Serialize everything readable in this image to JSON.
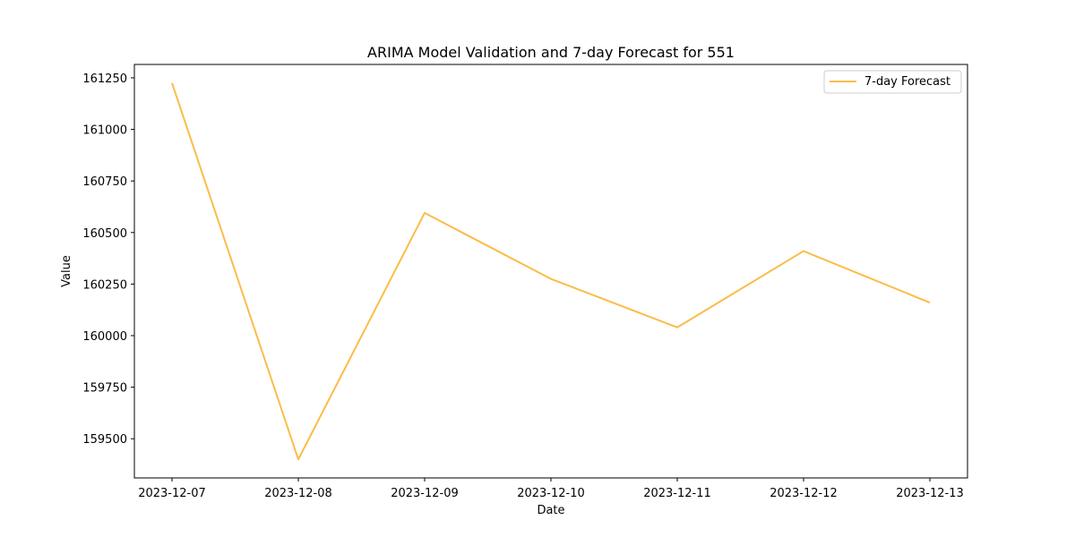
{
  "chart_data": {
    "type": "line",
    "title": "ARIMA Model Validation and 7-day Forecast for 551",
    "xlabel": "Date",
    "ylabel": "Value",
    "x": [
      "2023-12-07",
      "2023-12-08",
      "2023-12-09",
      "2023-12-10",
      "2023-12-11",
      "2023-12-12",
      "2023-12-13"
    ],
    "series": [
      {
        "name": "7-day Forecast",
        "color": "#FBBC48",
        "values": [
          161225,
          159400,
          160595,
          160275,
          160040,
          160410,
          160160
        ]
      }
    ],
    "ylim": [
      159310,
      161315
    ],
    "yticks": [
      159500,
      159750,
      160000,
      160250,
      160500,
      160750,
      161000,
      161250
    ],
    "grid": false,
    "legend": "top-right"
  }
}
